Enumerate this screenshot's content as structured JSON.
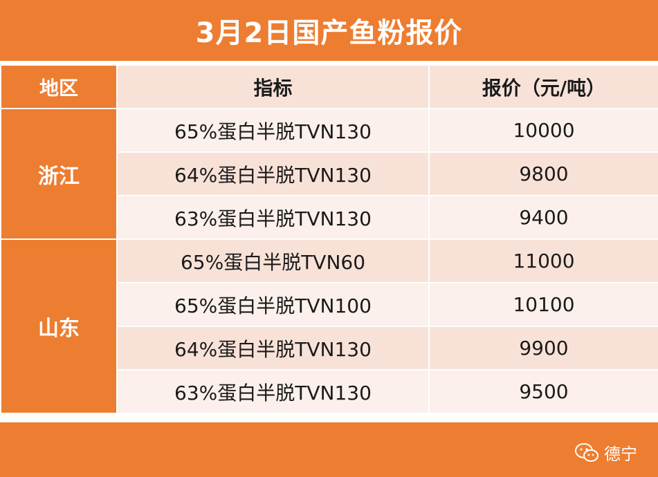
{
  "title": "3月2日国产鱼粉报价",
  "table": {
    "headers": {
      "region": "地区",
      "spec": "指标",
      "price": "报价（元/吨）"
    },
    "groups": [
      {
        "region": "浙江",
        "rows": [
          {
            "spec": "65%蛋白半脱TVN130",
            "price": "10000"
          },
          {
            "spec": "64%蛋白半脱TVN130",
            "price": "9800"
          },
          {
            "spec": "63%蛋白半脱TVN130",
            "price": "9400"
          }
        ]
      },
      {
        "region": "山东",
        "rows": [
          {
            "spec": "65%蛋白半脱TVN60",
            "price": "11000"
          },
          {
            "spec": "65%蛋白半脱TVN100",
            "price": "10100"
          },
          {
            "spec": "64%蛋白半脱TVN130",
            "price": "9900"
          },
          {
            "spec": "63%蛋白半脱TVN130",
            "price": "9500"
          }
        ]
      }
    ]
  },
  "watermark": {
    "icon": "wechat-icon",
    "text": "德宁"
  },
  "colors": {
    "accent": "#ed7d31",
    "row_light": "#fbf0eb",
    "row_dark": "#f8e2d8"
  }
}
